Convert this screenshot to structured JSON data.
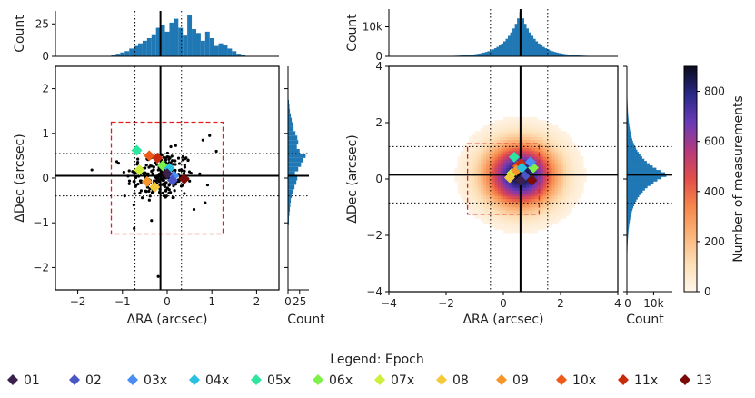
{
  "chart_data": [
    {
      "type": "scatter",
      "panel": "left-scatter",
      "xlabel": "ΔRA (arcsec)",
      "ylabel": "ΔDec (arcsec)",
      "xlim": [
        -2.5,
        2.5
      ],
      "ylim": [
        -2.5,
        2.5
      ],
      "xticks": [
        "−2",
        "−1",
        "0",
        "1",
        "2"
      ],
      "yticks": [
        "−2",
        "−1",
        "0",
        "1",
        "2"
      ],
      "median": {
        "x": -0.15,
        "y": 0.05
      },
      "dotted_x": [
        -0.72,
        0.32
      ],
      "dotted_y": [
        -0.4,
        0.55
      ],
      "box": {
        "x": [
          -1.25,
          1.25
        ],
        "y": [
          -1.25,
          1.25
        ]
      },
      "epochs": [
        {
          "label": "05x",
          "x": -0.68,
          "y": 0.62
        },
        {
          "label": "10x",
          "x": -0.4,
          "y": 0.5
        },
        {
          "label": "11x",
          "x": -0.22,
          "y": 0.45
        },
        {
          "label": "07x",
          "x": -0.62,
          "y": 0.18
        },
        {
          "label": "09",
          "x": -0.45,
          "y": -0.08
        },
        {
          "label": "06x",
          "x": -0.1,
          "y": 0.28
        },
        {
          "label": "04x",
          "x": 0.05,
          "y": 0.22
        },
        {
          "label": "03x",
          "x": 0.15,
          "y": 0.05
        },
        {
          "label": "08",
          "x": -0.28,
          "y": -0.2
        },
        {
          "label": "02",
          "x": 0.12,
          "y": -0.05
        },
        {
          "label": "13",
          "x": 0.38,
          "y": -0.02
        },
        {
          "label": "01",
          "x": 0.0,
          "y": 0.1
        }
      ]
    },
    {
      "type": "bar",
      "panel": "left-top-histogram",
      "ylabel": "Count",
      "yticks": [
        "0",
        "25"
      ],
      "ylim": [
        0,
        35
      ],
      "x_start": -1.25,
      "bin_width": 0.1,
      "values": [
        1,
        2,
        3,
        4,
        6,
        8,
        10,
        12,
        14,
        17,
        22,
        24,
        19,
        26,
        29,
        22,
        16,
        32,
        21,
        18,
        12,
        19,
        14,
        8,
        10,
        9,
        6,
        4,
        2,
        1
      ]
    },
    {
      "type": "bar",
      "panel": "left-right-histogram",
      "xlabel": "Count",
      "xticks": [
        "0",
        "25"
      ],
      "xlim": [
        0,
        45
      ],
      "y_start": -1.25,
      "bin_width": 0.1,
      "values": [
        1,
        1,
        2,
        2,
        3,
        4,
        5,
        6,
        8,
        10,
        14,
        18,
        20,
        15,
        22,
        28,
        33,
        38,
        25,
        19,
        22,
        20,
        16,
        12,
        10,
        8,
        6,
        4,
        3,
        2
      ]
    },
    {
      "type": "heatmap",
      "panel": "right-density",
      "xlabel": "ΔRA (arcsec)",
      "ylabel": "ΔDec (arcsec)",
      "xlim": [
        -4,
        4
      ],
      "ylim": [
        -4,
        4
      ],
      "xticks": [
        "−4",
        "−2",
        "0",
        "2",
        "4"
      ],
      "yticks": [
        "−4",
        "−2",
        "0",
        "2",
        "4"
      ],
      "median": {
        "x": 0.6,
        "y": 0.15
      },
      "dotted_x": [
        -0.45,
        1.55
      ],
      "dotted_y": [
        -0.85,
        1.15
      ],
      "box": {
        "x": [
          -1.25,
          1.25
        ],
        "y": [
          -1.25,
          1.25
        ]
      },
      "peak_count": 900,
      "epochs": [
        {
          "label": "05x",
          "x": 0.38,
          "y": 0.78
        },
        {
          "label": "10x",
          "x": 0.5,
          "y": 0.45
        },
        {
          "label": "11x",
          "x": 0.62,
          "y": 0.55
        },
        {
          "label": "07x",
          "x": 0.3,
          "y": 0.2
        },
        {
          "label": "09",
          "x": 0.45,
          "y": 0.3
        },
        {
          "label": "06x",
          "x": 1.05,
          "y": 0.4
        },
        {
          "label": "04x",
          "x": 0.65,
          "y": 0.4
        },
        {
          "label": "03x",
          "x": 0.95,
          "y": 0.6
        },
        {
          "label": "08",
          "x": 0.22,
          "y": 0.05
        },
        {
          "label": "02",
          "x": 0.75,
          "y": 0.1
        },
        {
          "label": "13",
          "x": 1.0,
          "y": -0.05
        },
        {
          "label": "01",
          "x": 0.6,
          "y": -0.05
        }
      ]
    },
    {
      "type": "area",
      "panel": "right-top-histogram",
      "ylabel": "Count",
      "yticks": [
        "0",
        "10k"
      ],
      "ylim": [
        0,
        16000
      ],
      "peak": 15000,
      "center": 0.6,
      "sigma": 0.7
    },
    {
      "type": "area",
      "panel": "right-right-histogram",
      "xlabel": "Count",
      "xticks": [
        "0",
        "10k"
      ],
      "xlim": [
        0,
        17000
      ],
      "peak": 15500,
      "center": 0.15,
      "sigma": 0.8
    }
  ],
  "colorbar": {
    "label": "Number of measurements",
    "min": 0,
    "max": 900,
    "ticks": [
      "0",
      "200",
      "400",
      "600",
      "800"
    ]
  },
  "legend": {
    "title": "Legend: Epoch",
    "items": [
      {
        "label": "01",
        "color": "#3b1f4d"
      },
      {
        "label": "02",
        "color": "#4a56c6"
      },
      {
        "label": "03x",
        "color": "#4a8ef5"
      },
      {
        "label": "04x",
        "color": "#2ac0e0"
      },
      {
        "label": "05x",
        "color": "#2ee6a0"
      },
      {
        "label": "06x",
        "color": "#7ef04a"
      },
      {
        "label": "07x",
        "color": "#cdee3a"
      },
      {
        "label": "08",
        "color": "#f4c93a"
      },
      {
        "label": "09",
        "color": "#f6962a"
      },
      {
        "label": "10x",
        "color": "#ee5a18"
      },
      {
        "label": "11x",
        "color": "#c82a0c"
      },
      {
        "label": "13",
        "color": "#7a0a06"
      }
    ]
  }
}
